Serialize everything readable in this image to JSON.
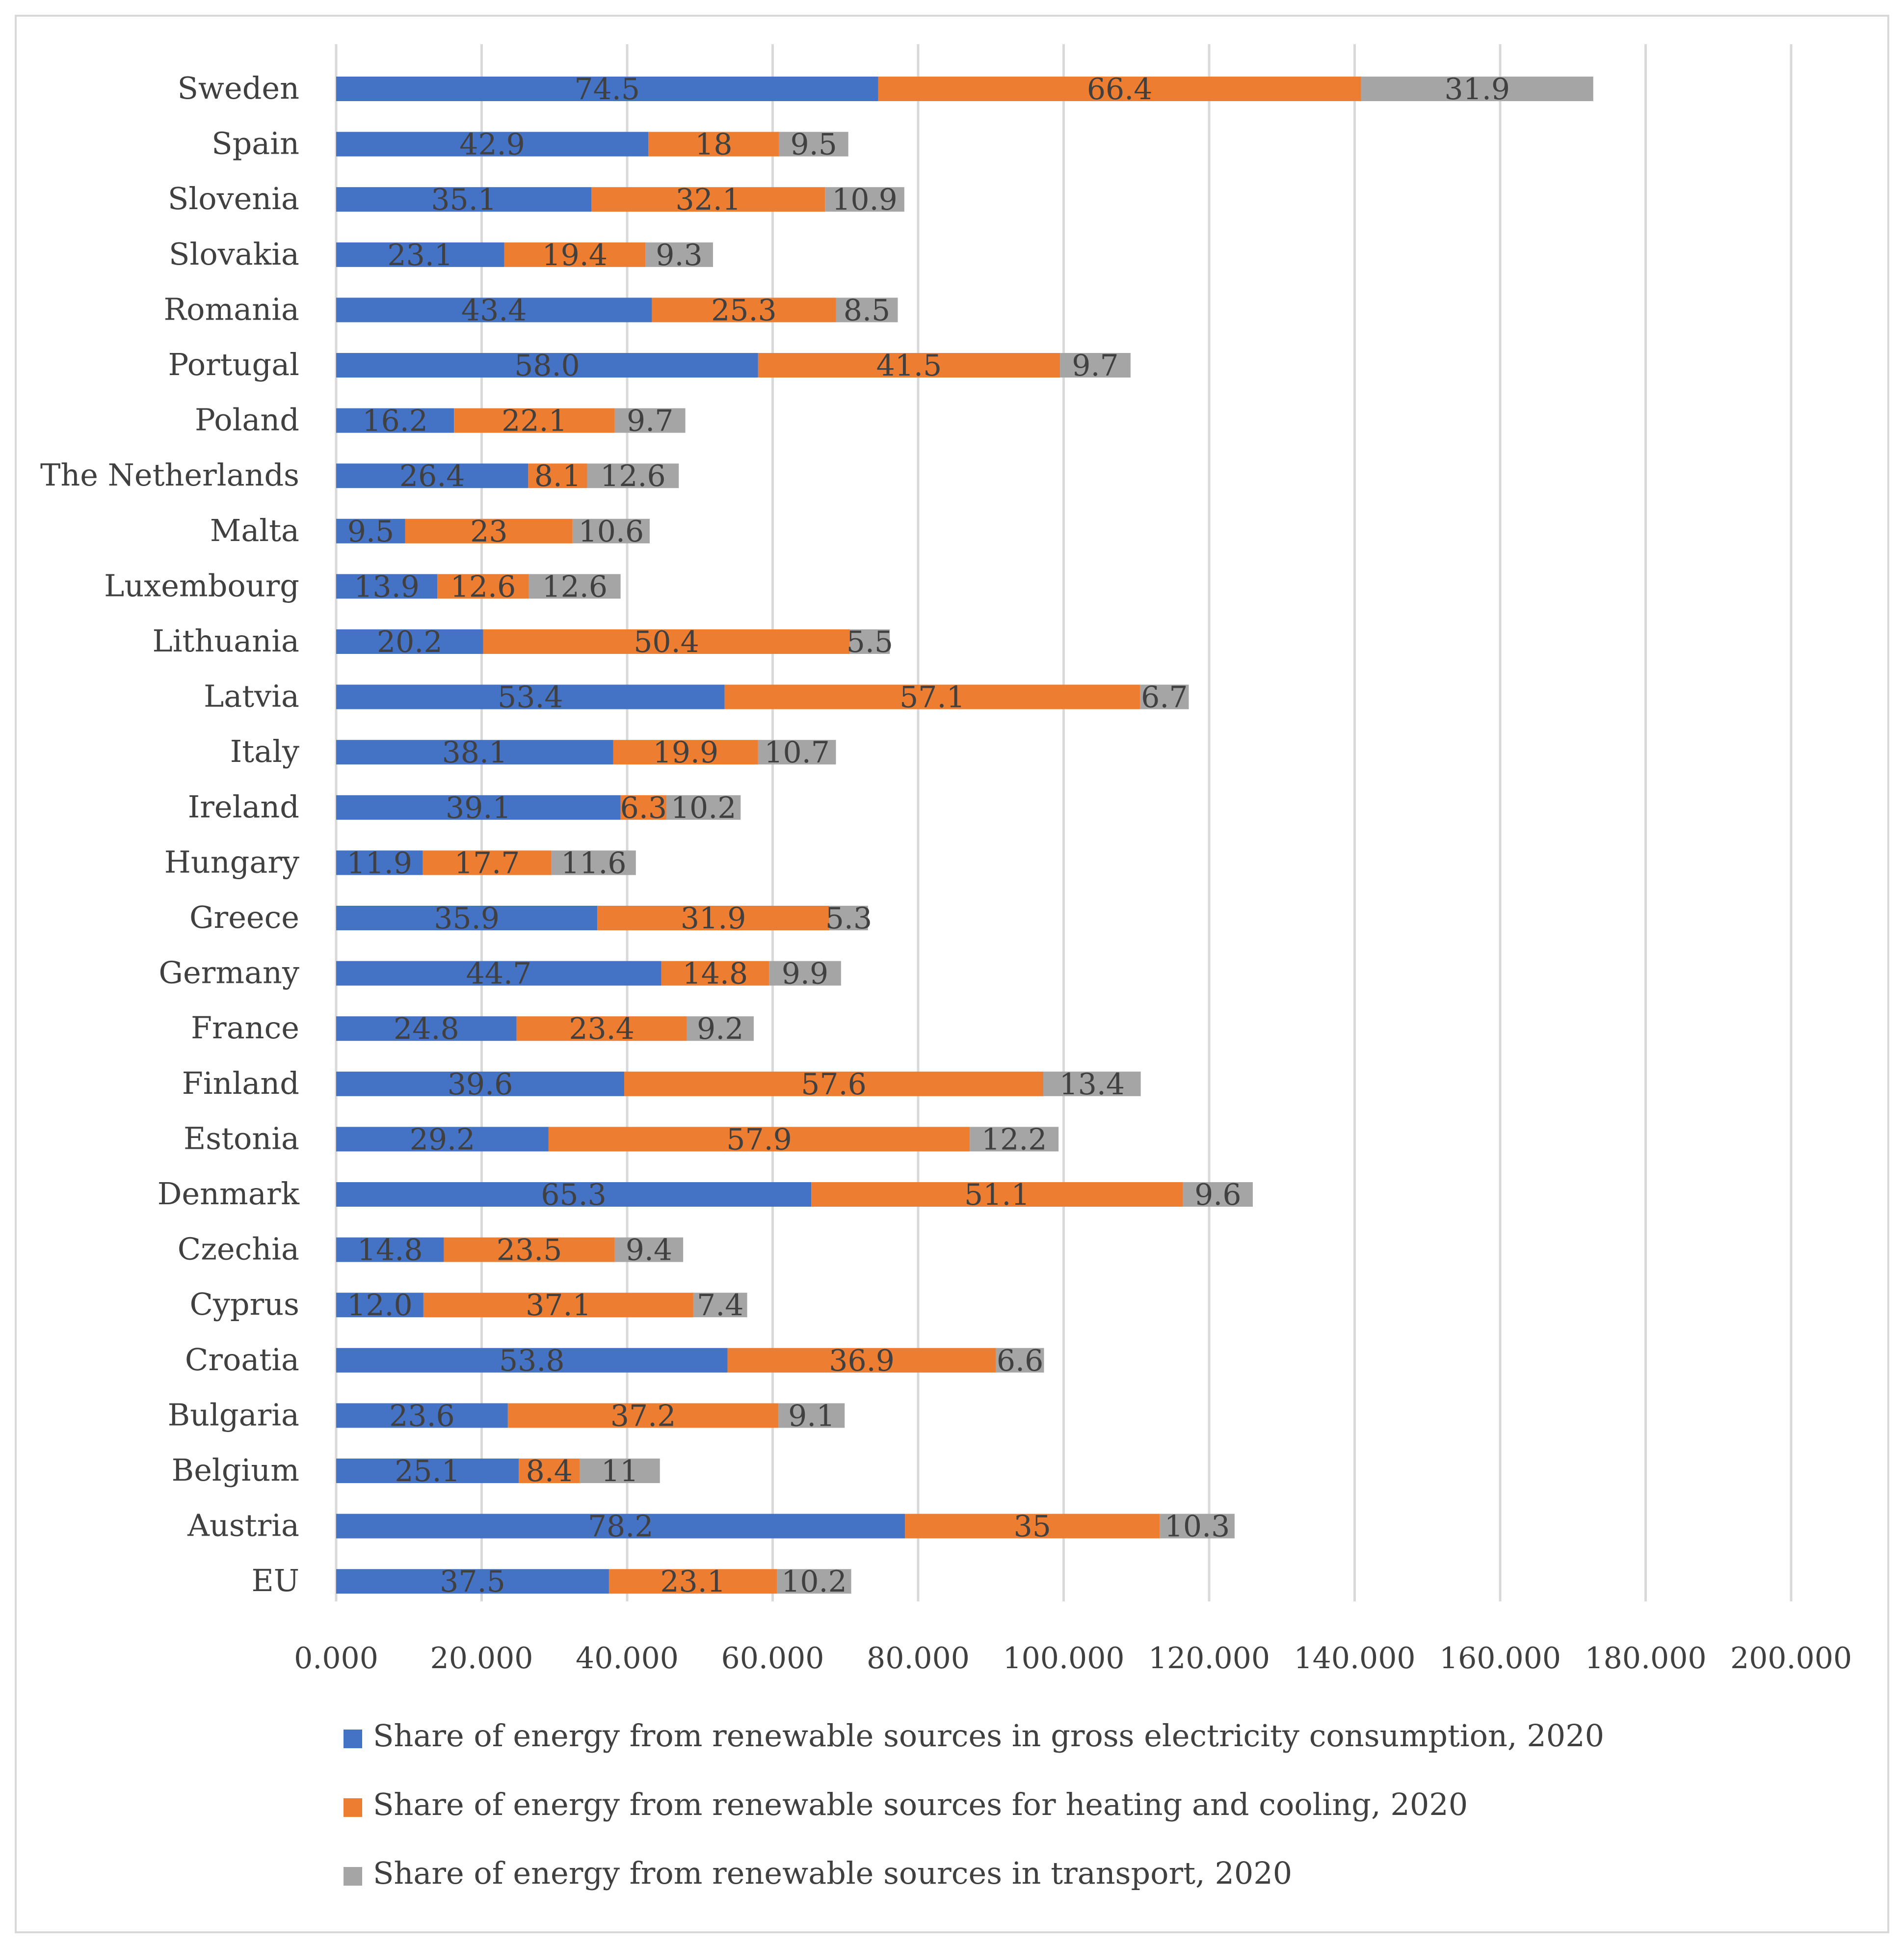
{
  "chart_data": {
    "type": "bar",
    "orientation": "horizontal",
    "stacked": true,
    "title": "",
    "xlabel": "",
    "ylabel": "",
    "xlim": [
      0,
      200
    ],
    "x_ticks": [
      "0.000",
      "20.000",
      "40.000",
      "60.000",
      "80.000",
      "100.000",
      "120.000",
      "140.000",
      "160.000",
      "180.000",
      "200.000"
    ],
    "grid": true,
    "legend_position": "bottom",
    "categories": [
      "Sweden",
      "Spain",
      "Slovenia",
      "Slovakia",
      "Romania",
      "Portugal",
      "Poland",
      "The Netherlands",
      "Malta",
      "Luxembourg",
      "Lithuania",
      "Latvia",
      "Italy",
      "Ireland",
      "Hungary",
      "Greece",
      "Germany",
      "France",
      "Finland",
      "Estonia",
      "Denmark",
      "Czechia",
      "Cyprus",
      "Croatia",
      "Bulgaria",
      "Belgium",
      "Austria",
      "EU"
    ],
    "series": [
      {
        "name": "Share of energy from renewable sources in gross electricity consumption, 2020",
        "color": "#4472c4",
        "values": [
          74.5,
          42.9,
          35.1,
          23.1,
          43.4,
          58.0,
          16.2,
          26.4,
          9.5,
          13.9,
          20.2,
          53.4,
          38.1,
          39.1,
          11.9,
          35.9,
          44.7,
          24.8,
          39.6,
          29.2,
          65.3,
          14.8,
          12.0,
          53.8,
          23.6,
          25.1,
          78.2,
          37.5
        ],
        "labels": [
          "74.5",
          "42.9",
          "35.1",
          "23.1",
          "43.4",
          "58.0",
          "16.2",
          "26.4",
          "9.5",
          "13.9",
          "20.2",
          "53.4",
          "38.1",
          "39.1",
          "11.9",
          "35.9",
          "44.7",
          "24.8",
          "39.6",
          "29.2",
          "65.3",
          "14.8",
          "12.0",
          "53.8",
          "23.6",
          "25.1",
          "78.2",
          "37.5"
        ]
      },
      {
        "name": "Share of energy from renewable sources for heating and cooling, 2020",
        "color": "#ed7d31",
        "values": [
          66.4,
          18,
          32.1,
          19.4,
          25.3,
          41.5,
          22.1,
          8.1,
          23,
          12.6,
          50.4,
          57.1,
          19.9,
          6.3,
          17.7,
          31.9,
          14.8,
          23.4,
          57.6,
          57.9,
          51.1,
          23.5,
          37.1,
          36.9,
          37.2,
          8.4,
          35,
          23.1
        ],
        "labels": [
          "66.4",
          "18",
          "32.1",
          "19.4",
          "25.3",
          "41.5",
          "22.1",
          "8.1",
          "23",
          "12.6",
          "50.4",
          "57.1",
          "19.9",
          "6.3",
          "17.7",
          "31.9",
          "14.8",
          "23.4",
          "57.6",
          "57.9",
          "51.1",
          "23.5",
          "37.1",
          "36.9",
          "37.2",
          "8.4",
          "35",
          "23.1"
        ]
      },
      {
        "name": "Share of energy from renewable sources in transport, 2020",
        "color": "#a5a5a5",
        "values": [
          31.9,
          9.5,
          10.9,
          9.3,
          8.5,
          9.7,
          9.7,
          12.6,
          10.6,
          12.6,
          5.5,
          6.7,
          10.7,
          10.2,
          11.6,
          5.3,
          9.9,
          9.2,
          13.4,
          12.2,
          9.6,
          9.4,
          7.4,
          6.6,
          9.1,
          11,
          10.3,
          10.2
        ],
        "labels": [
          "31.9",
          "9.5",
          "10.9",
          "9.3",
          "8.5",
          "9.7",
          "9.7",
          "12.6",
          "10.6",
          "12.6",
          "5.5",
          "6.7",
          "10.7",
          "10.2",
          "11.6",
          "5.3",
          "9.9",
          "9.2",
          "13.4",
          "12.2",
          "9.6",
          "9.4",
          "7.4",
          "6.6",
          "9.1",
          "11",
          "10.3",
          "10.2"
        ]
      }
    ]
  }
}
